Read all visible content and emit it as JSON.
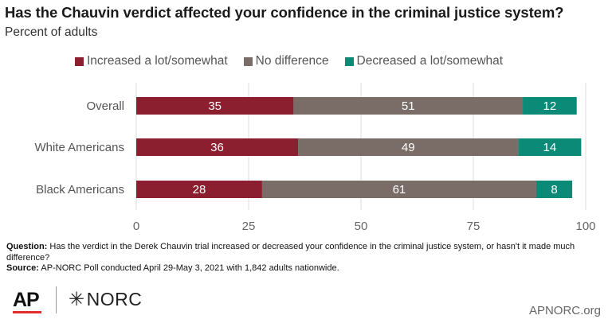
{
  "title": "Has the Chauvin verdict affected your confidence in the criminal justice system?",
  "subtitle": "Percent of adults",
  "legend": [
    {
      "label": "Increased a lot/somewhat",
      "color": "#8b1f2f"
    },
    {
      "label": "No difference",
      "color": "#7a6d67"
    },
    {
      "label": "Decreased a lot/somewhat",
      "color": "#0b8a78"
    }
  ],
  "chart_data": {
    "type": "bar",
    "orientation": "horizontal",
    "stacked": true,
    "categories": [
      "Overall",
      "White Americans",
      "Black Americans"
    ],
    "series": [
      {
        "name": "Increased a lot/somewhat",
        "color": "#8b1f2f",
        "values": [
          35,
          36,
          28
        ]
      },
      {
        "name": "No difference",
        "color": "#7a6d67",
        "values": [
          51,
          49,
          61
        ]
      },
      {
        "name": "Decreased a lot/somewhat",
        "color": "#0b8a78",
        "values": [
          12,
          14,
          8
        ]
      }
    ],
    "xlim": [
      0,
      100
    ],
    "xticks": [
      0,
      25,
      50,
      75,
      100
    ],
    "grid": true,
    "legend_position": "top"
  },
  "footnote": {
    "question_label": "Question:",
    "question_text": " Has the verdict in the Derek Chauvin trial increased or decreased your confidence in the criminal justice system, or hasn't it made much difference?",
    "source_label": "Source:",
    "source_text": " AP-NORC Poll conducted April 29-May 3, 2021 with 1,842 adults nationwide."
  },
  "branding": {
    "ap": "AP",
    "norc": "NORC",
    "norc_mark": "✳",
    "site": "APNORC.org"
  }
}
